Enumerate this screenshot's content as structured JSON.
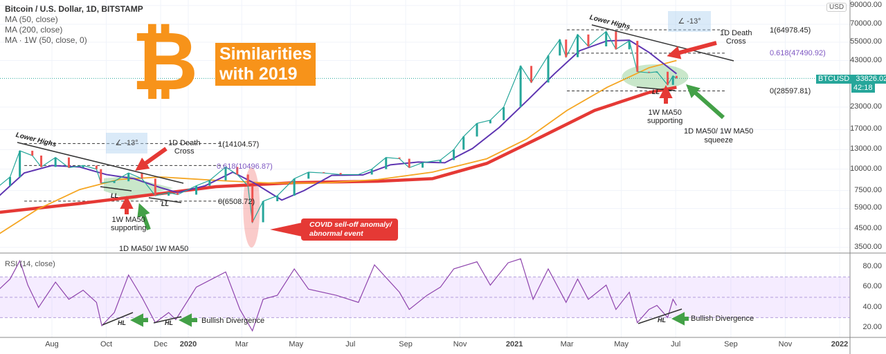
{
  "header": {
    "title": "Bitcoin / U.S. Dollar, 1D, BITSTAMP",
    "indicators": [
      "MA (50, close)",
      "MA (200, close)",
      "MA · 1W (50, close, 0)"
    ]
  },
  "overlay": {
    "logo": "₿",
    "headline_1": "Similarities",
    "headline_2": "with 2019",
    "currency": "USD"
  },
  "price_badge": {
    "symbol": "BTCUSD",
    "price": "33826.02",
    "countdown": "42:18",
    "color": "#26a69a"
  },
  "colors": {
    "candles_up": "#26a69a",
    "candles_down": "#ef5350",
    "ma50": "#5e35b1",
    "ma200": "#f5a623",
    "ma1w": "#e53935",
    "rsi": "#8e44ad",
    "bitcoin": "#f7931a"
  },
  "annotations": {
    "lower_highs": "Lower Highs",
    "angle": "-13°",
    "death_cross": [
      "1D Death",
      "Cross"
    ],
    "ll": "LL",
    "hl": "HL",
    "support": [
      "1W MA50",
      "supporting"
    ],
    "squeeze_2019": "1D MA50/ 1W MA50",
    "squeeze_2021": [
      "1D MA50/ 1W MA50",
      "squeeze"
    ],
    "covid": [
      "COVID sell-off anomaly/",
      "abnormal event"
    ],
    "bullish_div": "Bullish Divergence",
    "fib_2019": [
      "1(14104.57)",
      "0.618(10496.87)",
      "0(6508.72)"
    ],
    "fib_2021": [
      "1(64978.45)",
      "0.618(47490.92)",
      "0(28597.81)"
    ]
  },
  "rsi": {
    "label": "RSI (14, close)",
    "ticks": [
      "80.00",
      "60.00",
      "40.00",
      "20.00"
    ]
  },
  "chart_data": {
    "type": "line",
    "yscale": "log",
    "price_ticks": [
      "90000.00",
      "70000.00",
      "55000.00",
      "43000.00",
      "23000.00",
      "17000.00",
      "13000.00",
      "10000.00",
      "7500.00",
      "5900.00",
      "4500.00",
      "3500.00"
    ],
    "x_ticks": [
      "Aug",
      "Oct",
      "Dec",
      "2020",
      "Mar",
      "May",
      "Jul",
      "Sep",
      "Nov",
      "2021",
      "Mar",
      "May",
      "Jul",
      "Sep",
      "Nov",
      "2022"
    ],
    "x_tick_dates": [
      "2019-08-01",
      "2019-10-01",
      "2019-12-01",
      "2020-01-01",
      "2020-03-01",
      "2020-05-01",
      "2020-07-01",
      "2020-09-01",
      "2020-11-01",
      "2021-01-01",
      "2021-03-01",
      "2021-05-01",
      "2021-07-01",
      "2021-09-01",
      "2021-11-01",
      "2022-01-01"
    ],
    "series": [
      {
        "name": "BTCUSD",
        "points": [
          [
            "2019-06-03",
            8000
          ],
          [
            "2019-06-15",
            9000
          ],
          [
            "2019-06-26",
            12800
          ],
          [
            "2019-07-10",
            12000
          ],
          [
            "2019-07-20",
            10300
          ],
          [
            "2019-08-05",
            11700
          ],
          [
            "2019-08-20",
            10200
          ],
          [
            "2019-09-05",
            10500
          ],
          [
            "2019-09-20",
            10000
          ],
          [
            "2019-09-25",
            8300
          ],
          [
            "2019-10-10",
            8500
          ],
          [
            "2019-10-26",
            9500
          ],
          [
            "2019-11-10",
            8800
          ],
          [
            "2019-11-25",
            7000
          ],
          [
            "2019-12-10",
            7300
          ],
          [
            "2019-12-20",
            7100
          ],
          [
            "2020-01-10",
            8000
          ],
          [
            "2020-01-25",
            8600
          ],
          [
            "2020-02-12",
            10300
          ],
          [
            "2020-02-25",
            9300
          ],
          [
            "2020-03-08",
            8000
          ],
          [
            "2020-03-13",
            4900
          ],
          [
            "2020-03-25",
            6500
          ],
          [
            "2020-04-10",
            7000
          ],
          [
            "2020-04-29",
            8800
          ],
          [
            "2020-05-15",
            9600
          ],
          [
            "2020-06-01",
            9500
          ],
          [
            "2020-06-20",
            9300
          ],
          [
            "2020-07-10",
            9300
          ],
          [
            "2020-07-25",
            10000
          ],
          [
            "2020-08-10",
            11700
          ],
          [
            "2020-08-25",
            11500
          ],
          [
            "2020-09-05",
            10200
          ],
          [
            "2020-09-20",
            10900
          ],
          [
            "2020-10-10",
            11300
          ],
          [
            "2020-10-25",
            13000
          ],
          [
            "2020-11-05",
            15500
          ],
          [
            "2020-11-20",
            18500
          ],
          [
            "2020-12-05",
            19300
          ],
          [
            "2020-12-20",
            23000
          ],
          [
            "2021-01-08",
            40000
          ],
          [
            "2021-01-20",
            32000
          ],
          [
            "2021-02-08",
            46000
          ],
          [
            "2021-02-21",
            57000
          ],
          [
            "2021-02-28",
            45000
          ],
          [
            "2021-03-13",
            61000
          ],
          [
            "2021-03-25",
            52000
          ],
          [
            "2021-04-14",
            63500
          ],
          [
            "2021-04-25",
            50000
          ],
          [
            "2021-05-10",
            56000
          ],
          [
            "2021-05-19",
            37000
          ],
          [
            "2021-06-01",
            36500
          ],
          [
            "2021-06-10",
            37000
          ],
          [
            "2021-06-22",
            31000
          ],
          [
            "2021-06-28",
            35000
          ],
          [
            "2021-07-02",
            33826
          ]
        ]
      },
      {
        "name": "MA (50, close)",
        "points": [
          [
            "2019-06-03",
            7000
          ],
          [
            "2019-07-01",
            9500
          ],
          [
            "2019-08-01",
            10500
          ],
          [
            "2019-09-01",
            10300
          ],
          [
            "2019-10-01",
            9300
          ],
          [
            "2019-11-01",
            8800
          ],
          [
            "2019-12-01",
            7800
          ],
          [
            "2019-12-20",
            7300
          ],
          [
            "2020-01-20",
            8000
          ],
          [
            "2020-02-20",
            9600
          ],
          [
            "2020-03-15",
            8300
          ],
          [
            "2020-04-15",
            6600
          ],
          [
            "2020-05-10",
            7500
          ],
          [
            "2020-06-10",
            9200
          ],
          [
            "2020-07-15",
            9250
          ],
          [
            "2020-08-15",
            10600
          ],
          [
            "2020-09-15",
            11000
          ],
          [
            "2020-10-15",
            10900
          ],
          [
            "2020-11-15",
            13200
          ],
          [
            "2020-12-15",
            17500
          ],
          [
            "2021-01-15",
            25000
          ],
          [
            "2021-02-15",
            36000
          ],
          [
            "2021-03-15",
            49000
          ],
          [
            "2021-04-15",
            56000
          ],
          [
            "2021-05-10",
            56500
          ],
          [
            "2021-06-01",
            48000
          ],
          [
            "2021-07-02",
            36000
          ]
        ]
      },
      {
        "name": "MA (200, close)",
        "points": [
          [
            "2019-06-03",
            4200
          ],
          [
            "2019-07-15",
            5800
          ],
          [
            "2019-09-01",
            7600
          ],
          [
            "2019-10-15",
            8700
          ],
          [
            "2019-12-01",
            9000
          ],
          [
            "2020-02-01",
            8600
          ],
          [
            "2020-04-01",
            8300
          ],
          [
            "2020-06-01",
            8300
          ],
          [
            "2020-08-01",
            8700
          ],
          [
            "2020-10-01",
            9600
          ],
          [
            "2020-12-01",
            11500
          ],
          [
            "2021-01-15",
            15000
          ],
          [
            "2021-03-01",
            22000
          ],
          [
            "2021-04-15",
            30000
          ],
          [
            "2021-06-01",
            39000
          ],
          [
            "2021-07-02",
            43000
          ]
        ]
      },
      {
        "name": "MA · 1W (50, close, 0)",
        "points": [
          [
            "2019-06-03",
            5600
          ],
          [
            "2019-09-01",
            6300
          ],
          [
            "2019-12-01",
            7200
          ],
          [
            "2020-02-01",
            7900
          ],
          [
            "2020-05-01",
            8350
          ],
          [
            "2020-08-01",
            8500
          ],
          [
            "2020-10-01",
            8800
          ],
          [
            "2020-12-01",
            10800
          ],
          [
            "2021-02-01",
            15500
          ],
          [
            "2021-04-01",
            22000
          ],
          [
            "2021-06-01",
            28000
          ],
          [
            "2021-07-02",
            30000
          ]
        ]
      }
    ],
    "rsi_series": [
      [
        "2019-06-03",
        58
      ],
      [
        "2019-06-15",
        68
      ],
      [
        "2019-06-26",
        86
      ],
      [
        "2019-07-05",
        62
      ],
      [
        "2019-07-17",
        40
      ],
      [
        "2019-08-05",
        65
      ],
      [
        "2019-08-20",
        48
      ],
      [
        "2019-09-05",
        57
      ],
      [
        "2019-09-20",
        45
      ],
      [
        "2019-09-26",
        22
      ],
      [
        "2019-10-10",
        35
      ],
      [
        "2019-10-26",
        72
      ],
      [
        "2019-11-10",
        50
      ],
      [
        "2019-11-25",
        25
      ],
      [
        "2019-12-10",
        35
      ],
      [
        "2019-12-18",
        28
      ],
      [
        "2020-01-10",
        60
      ],
      [
        "2020-02-12",
        75
      ],
      [
        "2020-02-28",
        38
      ],
      [
        "2020-03-13",
        17
      ],
      [
        "2020-03-25",
        48
      ],
      [
        "2020-04-10",
        52
      ],
      [
        "2020-04-29",
        78
      ],
      [
        "2020-05-15",
        58
      ],
      [
        "2020-06-15",
        52
      ],
      [
        "2020-07-10",
        45
      ],
      [
        "2020-07-28",
        82
      ],
      [
        "2020-08-25",
        55
      ],
      [
        "2020-09-05",
        38
      ],
      [
        "2020-09-25",
        52
      ],
      [
        "2020-10-10",
        60
      ],
      [
        "2020-10-25",
        78
      ],
      [
        "2020-11-20",
        85
      ],
      [
        "2020-12-05",
        62
      ],
      [
        "2020-12-25",
        84
      ],
      [
        "2021-01-08",
        88
      ],
      [
        "2021-01-22",
        48
      ],
      [
        "2021-02-08",
        78
      ],
      [
        "2021-02-28",
        45
      ],
      [
        "2021-03-13",
        68
      ],
      [
        "2021-03-25",
        48
      ],
      [
        "2021-04-14",
        62
      ],
      [
        "2021-04-25",
        38
      ],
      [
        "2021-05-10",
        55
      ],
      [
        "2021-05-19",
        25
      ],
      [
        "2021-06-01",
        38
      ],
      [
        "2021-06-10",
        42
      ],
      [
        "2021-06-22",
        30
      ],
      [
        "2021-06-28",
        48
      ],
      [
        "2021-07-02",
        42
      ]
    ]
  }
}
